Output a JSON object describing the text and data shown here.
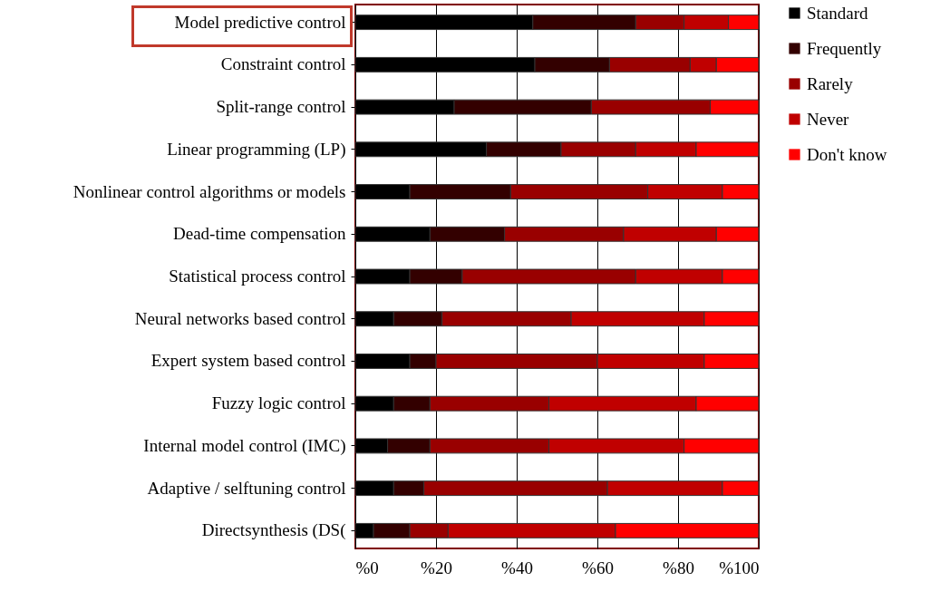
{
  "chart_data": {
    "type": "bar",
    "orientation": "horizontal",
    "stacked": true,
    "categories": [
      "Model predictive control",
      "Constraint control",
      "Split-range control",
      "Linear programming (LP)",
      "Nonlinear control algorithms or models",
      "Dead-time compensation",
      "Statistical process control",
      "Neural networks based control",
      "Expert system based control",
      "Fuzzy logic control",
      "Internal model control (IMC)",
      "Adaptive / selftuning control",
      "Directsynthesis (DS("
    ],
    "series": [
      {
        "name": "Standard",
        "color": "#000000",
        "values": [
          44,
          44.5,
          24.5,
          32.5,
          13.5,
          18.5,
          13.5,
          9.5,
          13.5,
          9.5,
          8,
          9.5,
          4.5
        ]
      },
      {
        "name": "Frequently",
        "color": "#330000",
        "values": [
          25.5,
          18.5,
          34,
          18.5,
          25,
          18.5,
          13,
          12,
          6.5,
          9,
          10.5,
          7.5,
          9
        ]
      },
      {
        "name": "Rarely",
        "color": "#990000",
        "values": [
          12,
          20,
          29.5,
          18.5,
          34,
          29.5,
          43,
          32,
          40,
          29.5,
          29.5,
          45.5,
          9.5
        ]
      },
      {
        "name": "Never",
        "color": "#c00000",
        "values": [
          11,
          6.5,
          0,
          15,
          18.5,
          23,
          21.5,
          33,
          26.5,
          36.5,
          33.5,
          28.5,
          41.5
        ]
      },
      {
        "name": "Don't know",
        "color": "#ff0000",
        "values": [
          7.5,
          10.5,
          12,
          15.5,
          9,
          10.5,
          9,
          13.5,
          13.5,
          15.5,
          18.5,
          9,
          35.5
        ]
      }
    ],
    "xlim": [
      0,
      100
    ],
    "xticks": [
      {
        "value": 0,
        "label": "%0"
      },
      {
        "value": 20,
        "label": "%20"
      },
      {
        "value": 40,
        "label": "%40"
      },
      {
        "value": 60,
        "label": "%60"
      },
      {
        "value": 80,
        "label": "%80"
      },
      {
        "value": 100,
        "label": "%100"
      }
    ],
    "grid": "x",
    "legend": "right",
    "marker": "square"
  }
}
